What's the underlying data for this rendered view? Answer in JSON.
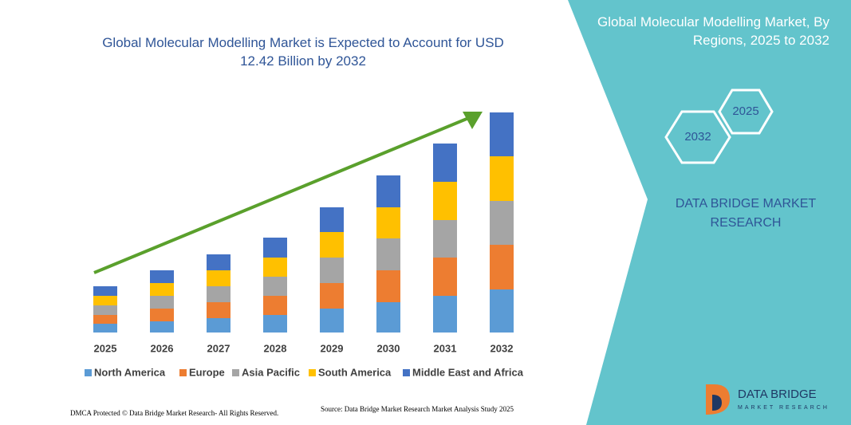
{
  "chart_data": {
    "type": "stacked-bar",
    "title": "Global Molecular Modelling Market is Expected to Account for USD 12.42 Billion by 2032",
    "categories": [
      "2025",
      "2026",
      "2027",
      "2028",
      "2029",
      "2030",
      "2031",
      "2032"
    ],
    "series": [
      {
        "name": "North America",
        "color": "#5b9bd5",
        "values": [
          11,
          14,
          18,
          22,
          30,
          38,
          46,
          54
        ]
      },
      {
        "name": "Europe",
        "color": "#ed7d31",
        "values": [
          11,
          16,
          20,
          24,
          32,
          40,
          48,
          56
        ]
      },
      {
        "name": "Asia Pacific",
        "color": "#a5a5a5",
        "values": [
          12,
          16,
          20,
          24,
          32,
          40,
          47,
          55
        ]
      },
      {
        "name": "South America",
        "color": "#ffc000",
        "values": [
          12,
          16,
          20,
          24,
          32,
          39,
          48,
          56
        ]
      },
      {
        "name": "Middle East and Africa",
        "color": "#4472c4",
        "values": [
          12,
          16,
          20,
          25,
          31,
          40,
          48,
          55
        ]
      }
    ],
    "legend": "bottom"
  },
  "panel": {
    "title": "Global Molecular Modelling Market, By Regions, 2025 to 2032",
    "hex_start": "2025",
    "hex_end": "2032",
    "brand": "DATA BRIDGE MARKET RESEARCH",
    "logo_name": "DATA BRIDGE",
    "logo_sub": "MARKET RESEARCH"
  },
  "footer": {
    "left": "DMCA Protected © Data Bridge Market Research- All Rights Reserved.",
    "right": "Source: Data Bridge Market Research Market Analysis Study 2025"
  }
}
